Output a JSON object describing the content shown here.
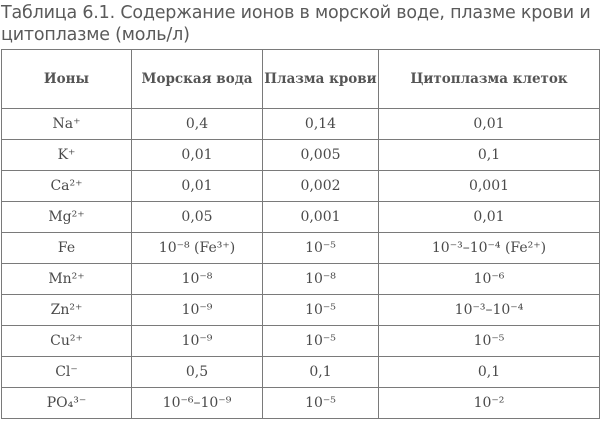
{
  "caption": "Таблица 6.1. Содержание ионов в морской воде, плазме крови и цитоплазме (моль/л)",
  "table": {
    "headers": [
      "Ионы",
      "Морская вода",
      "Плазма крови",
      "Цитоплазма клеток"
    ],
    "rows": [
      [
        "Na⁺",
        "0,4",
        "0,14",
        "0,01"
      ],
      [
        "K⁺",
        "0,01",
        "0,005",
        "0,1"
      ],
      [
        "Ca²⁺",
        "0,01",
        "0,002",
        "0,001"
      ],
      [
        "Mg²⁺",
        "0,05",
        "0,001",
        "0,01"
      ],
      [
        "Fe",
        "10⁻⁸ (Fe³⁺)",
        "10⁻⁵",
        "10⁻³–10⁻⁴ (Fe²⁺)"
      ],
      [
        "Mn²⁺",
        "10⁻⁸",
        "10⁻⁸",
        "10⁻⁶"
      ],
      [
        "Zn²⁺",
        "10⁻⁹",
        "10⁻⁵",
        "10⁻³–10⁻⁴"
      ],
      [
        "Cu²⁺",
        "10⁻⁹",
        "10⁻⁵",
        "10⁻⁵"
      ],
      [
        "Cl⁻",
        "0,5",
        "0,1",
        "0,1"
      ],
      [
        "PO₄³⁻",
        "10⁻⁶–10⁻⁹",
        "10⁻⁵",
        "10⁻²"
      ]
    ]
  }
}
